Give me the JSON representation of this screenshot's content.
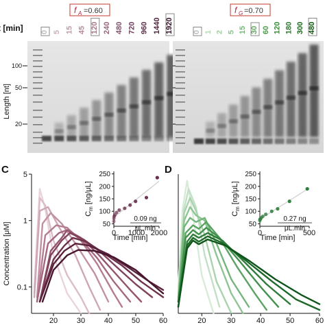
{
  "gel": {
    "time_header": "t [min]",
    "length_axis_label": "Length [nt]",
    "ladder_ticks": [
      "100",
      "50",
      "20"
    ],
    "left": {
      "label_prefix": "f",
      "label_sub": "A",
      "label_value": "=0.60",
      "lanes": [
        "0",
        "5",
        "15",
        "45",
        "120",
        "240",
        "480",
        "720",
        "960",
        "1440",
        "1920"
      ],
      "boxed_lanes": [
        "0",
        "120",
        "1920"
      ],
      "lane_colors": [
        "#bdbdbd",
        "#c9adb8",
        "#bf9aa9",
        "#b48b9b",
        "#a57a8c",
        "#93667a",
        "#80536a",
        "#6d405a",
        "#5c304b",
        "#4b223c",
        "#3a142d"
      ]
    },
    "right": {
      "label_prefix": "f",
      "label_sub": "G",
      "label_value": "=0.70",
      "lanes": [
        "0",
        "1",
        "2",
        "5",
        "15",
        "30",
        "60",
        "120",
        "180",
        "300",
        "480"
      ],
      "boxed_lanes": [
        "0",
        "30",
        "480"
      ],
      "lane_colors": [
        "#bdbdbd",
        "#b2d9b2",
        "#9fce9f",
        "#8cc38c",
        "#78b778",
        "#62a862",
        "#4f994f",
        "#3b8a3b",
        "#2b7a2b",
        "#1c6a1c",
        "#0e5a0e"
      ]
    }
  },
  "panels": [
    {
      "letter": "C",
      "ylabel": "Concentration [μM]",
      "color": "#5e2a45",
      "inset": {
        "ylabel": "C",
        "ylabel_sub": "m",
        "yunit": " [ng/μL]",
        "xlabel": "Time [min]",
        "yticks": [
          "250",
          "200",
          "150",
          "100",
          "50"
        ],
        "xticks": [
          "0",
          "1000",
          "2000"
        ],
        "rate_value": "0.09 ng",
        "rate_unit": "μL.min",
        "color": "#6b2d4f"
      }
    },
    {
      "letter": "D",
      "ylabel": "",
      "color": "#1f6e35",
      "inset": {
        "ylabel": "C",
        "ylabel_sub": "m",
        "yunit": " [ng/μL]",
        "xlabel": "Time [min]",
        "yticks": [
          "250",
          "200",
          "150",
          "100",
          "50"
        ],
        "xticks": [
          "0",
          "500"
        ],
        "rate_value": "0.27 ng",
        "rate_unit": "μL.min",
        "color": "#2e7d3a"
      }
    }
  ],
  "chart_data": [
    {
      "type": "line",
      "panel": "C",
      "title": "",
      "xlabel": "",
      "ylabel": "Concentration [μM]",
      "xlim": [
        12,
        60
      ],
      "ylim": [
        0.04,
        5
      ],
      "y_scale": "log",
      "xticks": [
        20,
        30,
        40,
        50,
        60
      ],
      "yticks": [
        5,
        1,
        0.1
      ],
      "series": [
        {
          "x": [
            13,
            15,
            17,
            20,
            25,
            30
          ],
          "values": [
            0.1,
            3.0,
            1.5,
            0.3,
            0.08,
            0.04
          ]
        },
        {
          "x": [
            13,
            15,
            17,
            20,
            25,
            30,
            33
          ],
          "values": [
            0.08,
            2.2,
            1.7,
            0.5,
            0.15,
            0.07,
            0.04
          ]
        },
        {
          "x": [
            13,
            15,
            18,
            22,
            28,
            33,
            37
          ],
          "values": [
            0.07,
            1.4,
            1.6,
            0.8,
            0.3,
            0.1,
            0.045
          ]
        },
        {
          "x": [
            14,
            16,
            19,
            23,
            28,
            35,
            40
          ],
          "values": [
            0.07,
            0.9,
            1.3,
            0.9,
            0.45,
            0.16,
            0.06
          ]
        },
        {
          "x": [
            14,
            17,
            21,
            25,
            30,
            36,
            42,
            45
          ],
          "values": [
            0.06,
            0.6,
            0.85,
            0.78,
            0.5,
            0.22,
            0.08,
            0.05
          ]
        },
        {
          "x": [
            14,
            18,
            22,
            25,
            30,
            36,
            42,
            48
          ],
          "values": [
            0.06,
            0.45,
            0.65,
            0.72,
            0.52,
            0.27,
            0.12,
            0.06
          ]
        },
        {
          "x": [
            15,
            19,
            23,
            25,
            30,
            36,
            42,
            48,
            52
          ],
          "values": [
            0.06,
            0.35,
            0.55,
            0.72,
            0.55,
            0.32,
            0.17,
            0.09,
            0.06
          ]
        },
        {
          "x": [
            15,
            19,
            23,
            26,
            31,
            37,
            43,
            50,
            56
          ],
          "values": [
            0.06,
            0.3,
            0.5,
            0.65,
            0.52,
            0.34,
            0.2,
            0.11,
            0.07
          ]
        },
        {
          "x": [
            15,
            20,
            24,
            27,
            32,
            38,
            45,
            52,
            60
          ],
          "values": [
            0.06,
            0.26,
            0.42,
            0.55,
            0.48,
            0.33,
            0.21,
            0.12,
            0.07
          ]
        },
        {
          "x": [
            15,
            20,
            24,
            28,
            33,
            40,
            47,
            55,
            60
          ],
          "values": [
            0.06,
            0.22,
            0.35,
            0.45,
            0.42,
            0.31,
            0.2,
            0.12,
            0.09
          ]
        },
        {
          "x": [
            16,
            20,
            25,
            29,
            35,
            42,
            50,
            56,
            60
          ],
          "values": [
            0.06,
            0.18,
            0.3,
            0.36,
            0.35,
            0.28,
            0.18,
            0.11,
            0.08
          ]
        }
      ],
      "series_colors": [
        "#e9d3dc",
        "#dcbcc9",
        "#cfa6b6",
        "#c290a3",
        "#b47b91",
        "#a5677f",
        "#94546d",
        "#81425c",
        "#6e314b",
        "#5a223b",
        "#47152d"
      ],
      "inset": {
        "type": "scatter",
        "xlabel": "Time [min]",
        "ylabel": "Cm [ng/μL]",
        "xlim": [
          0,
          2000
        ],
        "ylim": [
          40,
          260
        ],
        "x": [
          0,
          5,
          15,
          45,
          120,
          240,
          480,
          720,
          960,
          1440,
          1920
        ],
        "values": [
          60,
          72,
          80,
          85,
          95,
          105,
          112,
          125,
          140,
          155,
          235
        ],
        "fit_slope_label": "0.09 ng / μL.min"
      }
    },
    {
      "type": "line",
      "panel": "D",
      "title": "",
      "xlabel": "",
      "ylabel": "",
      "xlim": [
        12,
        60
      ],
      "ylim": [
        0.04,
        5
      ],
      "y_scale": "log",
      "xticks": [
        20,
        30,
        40,
        50,
        60
      ],
      "yticks": [],
      "series": [
        {
          "x": [
            12,
            13.5,
            15,
            17,
            20,
            24
          ],
          "values": [
            0.1,
            1.5,
            4.0,
            1.2,
            0.15,
            0.04
          ]
        },
        {
          "x": [
            12,
            14,
            15.5,
            18,
            21,
            26
          ],
          "values": [
            0.08,
            1.5,
            3.0,
            1.6,
            0.3,
            0.05
          ]
        },
        {
          "x": [
            12,
            14,
            16,
            18,
            21,
            25,
            30
          ],
          "values": [
            0.07,
            1.3,
            2.2,
            1.4,
            0.6,
            0.12,
            0.04
          ]
        },
        {
          "x": [
            12,
            14,
            16,
            18,
            21,
            25,
            30,
            34
          ],
          "values": [
            0.07,
            1.0,
            1.6,
            1.2,
            1.0,
            0.3,
            0.08,
            0.04
          ]
        },
        {
          "x": [
            12,
            14,
            16,
            18,
            21,
            25,
            30,
            36
          ],
          "values": [
            0.06,
            0.8,
            1.1,
            0.95,
            1.1,
            0.45,
            0.13,
            0.05
          ]
        },
        {
          "x": [
            12,
            14.5,
            17,
            19,
            21.5,
            26,
            32,
            38,
            42
          ],
          "values": [
            0.06,
            0.65,
            0.85,
            0.75,
            0.95,
            0.55,
            0.2,
            0.08,
            0.045
          ]
        },
        {
          "x": [
            12,
            14.5,
            17,
            19,
            21.5,
            26,
            33,
            40,
            46
          ],
          "values": [
            0.06,
            0.55,
            0.72,
            0.62,
            0.78,
            0.55,
            0.24,
            0.1,
            0.05
          ]
        },
        {
          "x": [
            12,
            15,
            17,
            19,
            22,
            27,
            34,
            42,
            50
          ],
          "values": [
            0.06,
            0.48,
            0.62,
            0.55,
            0.65,
            0.5,
            0.25,
            0.11,
            0.055
          ]
        },
        {
          "x": [
            12,
            15,
            17,
            19,
            22,
            27,
            35,
            44,
            52,
            60
          ],
          "values": [
            0.05,
            0.42,
            0.55,
            0.48,
            0.58,
            0.46,
            0.25,
            0.12,
            0.065,
            0.045
          ]
        },
        {
          "x": [
            12,
            15,
            17,
            19,
            22,
            28,
            36,
            45,
            54,
            60
          ],
          "values": [
            0.05,
            0.38,
            0.5,
            0.44,
            0.52,
            0.42,
            0.25,
            0.13,
            0.075,
            0.055
          ]
        }
      ],
      "series_colors": [
        "#d7ebd9",
        "#c2e0c5",
        "#a9d3ad",
        "#8fc594",
        "#74b57b",
        "#5ba363",
        "#44904d",
        "#2f7c3a",
        "#1d6829",
        "#0f541b"
      ],
      "inset": {
        "type": "scatter",
        "xlabel": "Time [min]",
        "ylabel": "Cm [ng/μL]",
        "xlim": [
          0,
          500
        ],
        "ylim": [
          40,
          260
        ],
        "x": [
          0,
          1,
          2,
          5,
          15,
          30,
          60,
          120,
          180,
          300,
          480
        ],
        "values": [
          62,
          66,
          68,
          70,
          74,
          80,
          88,
          100,
          110,
          140,
          190
        ],
        "fit_slope_label": "0.27 ng / μL.min"
      }
    }
  ]
}
